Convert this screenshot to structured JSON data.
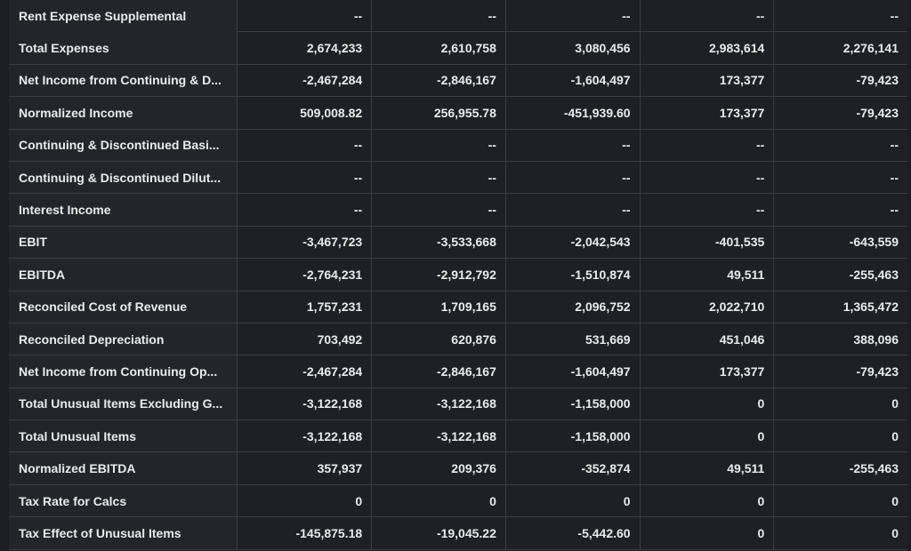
{
  "table": {
    "rows": [
      {
        "label": "Rent Expense Supplemental",
        "values": [
          "--",
          "--",
          "--",
          "--",
          "--"
        ]
      },
      {
        "label": "Total Expenses",
        "values": [
          "2,674,233",
          "2,610,758",
          "3,080,456",
          "2,983,614",
          "2,276,141"
        ]
      },
      {
        "label": "Net Income from Continuing & D...",
        "values": [
          "-2,467,284",
          "-2,846,167",
          "-1,604,497",
          "173,377",
          "-79,423"
        ]
      },
      {
        "label": "Normalized Income",
        "values": [
          "509,008.82",
          "256,955.78",
          "-451,939.60",
          "173,377",
          "-79,423"
        ]
      },
      {
        "label": "Continuing & Discontinued Basi...",
        "values": [
          "--",
          "--",
          "--",
          "--",
          "--"
        ]
      },
      {
        "label": "Continuing & Discontinued Dilut...",
        "values": [
          "--",
          "--",
          "--",
          "--",
          "--"
        ]
      },
      {
        "label": "Interest Income",
        "values": [
          "--",
          "--",
          "--",
          "--",
          "--"
        ]
      },
      {
        "label": "EBIT",
        "values": [
          "-3,467,723",
          "-3,533,668",
          "-2,042,543",
          "-401,535",
          "-643,559"
        ]
      },
      {
        "label": "EBITDA",
        "values": [
          "-2,764,231",
          "-2,912,792",
          "-1,510,874",
          "49,511",
          "-255,463"
        ]
      },
      {
        "label": "Reconciled Cost of Revenue",
        "values": [
          "1,757,231",
          "1,709,165",
          "2,096,752",
          "2,022,710",
          "1,365,472"
        ]
      },
      {
        "label": "Reconciled Depreciation",
        "values": [
          "703,492",
          "620,876",
          "531,669",
          "451,046",
          "388,096"
        ]
      },
      {
        "label": "Net Income from Continuing Op...",
        "values": [
          "-2,467,284",
          "-2,846,167",
          "-1,604,497",
          "173,377",
          "-79,423"
        ]
      },
      {
        "label": "Total Unusual Items Excluding G...",
        "values": [
          "-3,122,168",
          "-3,122,168",
          "-1,158,000",
          "0",
          "0"
        ]
      },
      {
        "label": "Total Unusual Items",
        "values": [
          "-3,122,168",
          "-3,122,168",
          "-1,158,000",
          "0",
          "0"
        ]
      },
      {
        "label": "Normalized EBITDA",
        "values": [
          "357,937",
          "209,376",
          "-352,874",
          "49,511",
          "-255,463"
        ]
      },
      {
        "label": "Tax Rate for Calcs",
        "values": [
          "0",
          "0",
          "0",
          "0",
          "0"
        ]
      },
      {
        "label": "Tax Effect of Unusual Items",
        "values": [
          "-145,875.18",
          "-19,045.22",
          "-5,442.60",
          "0",
          "0"
        ]
      }
    ]
  },
  "colors": {
    "background": "#1c1e24",
    "row_background": "#1e2026",
    "label_background": "#23252b",
    "border": "#3a3d44",
    "text": "#e9eaed"
  }
}
